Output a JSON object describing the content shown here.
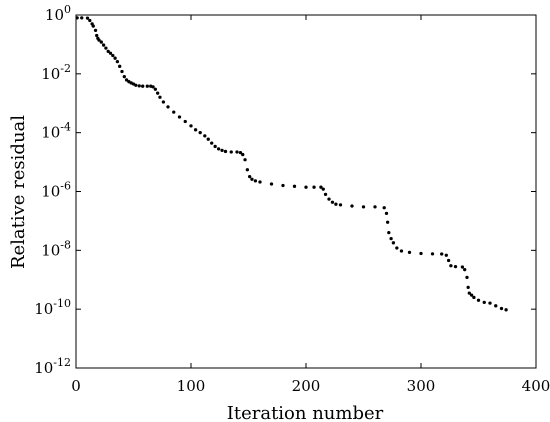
{
  "chart_data": {
    "type": "scatter",
    "title": "",
    "xlabel": "Iteration number",
    "ylabel": "Relative residual",
    "xlim": [
      0,
      400
    ],
    "ylim": [
      1e-12,
      1
    ],
    "yscale": "log",
    "grid": true,
    "xticks": [
      0,
      100,
      200,
      300,
      400
    ],
    "xtick_labels": [
      "0",
      "100",
      "200",
      "300",
      "400"
    ],
    "yticks": [
      1e-12,
      1e-10,
      1e-08,
      1e-06,
      0.0001,
      0.01,
      1
    ],
    "ytick_labels": [
      {
        "base": "10",
        "exp": "-12"
      },
      {
        "base": "10",
        "exp": "-10"
      },
      {
        "base": "10",
        "exp": "-8"
      },
      {
        "base": "10",
        "exp": "-6"
      },
      {
        "base": "10",
        "exp": "-4"
      },
      {
        "base": "10",
        "exp": "-2"
      },
      {
        "base": "10",
        "exp": "0"
      }
    ],
    "marker_color": "#000000",
    "series": [
      {
        "points": [
          [
            1,
            0.8
          ],
          [
            5,
            0.8
          ],
          [
            10,
            0.78
          ],
          [
            12,
            0.65
          ],
          [
            14,
            0.5
          ],
          [
            15,
            0.42
          ],
          [
            17,
            0.3
          ],
          [
            18,
            0.2
          ],
          [
            19,
            0.16
          ],
          [
            20,
            0.14
          ],
          [
            22,
            0.12
          ],
          [
            24,
            0.095
          ],
          [
            26,
            0.075
          ],
          [
            28,
            0.058
          ],
          [
            30,
            0.05
          ],
          [
            32,
            0.042
          ],
          [
            34,
            0.034
          ],
          [
            36,
            0.026
          ],
          [
            38,
            0.018
          ],
          [
            40,
            0.012
          ],
          [
            42,
            0.008
          ],
          [
            44,
            0.0062
          ],
          [
            46,
            0.0054
          ],
          [
            48,
            0.0049
          ],
          [
            50,
            0.0045
          ],
          [
            52,
            0.0041
          ],
          [
            55,
            0.0039
          ],
          [
            58,
            0.0038
          ],
          [
            62,
            0.0038
          ],
          [
            65,
            0.0038
          ],
          [
            67,
            0.0036
          ],
          [
            69,
            0.003
          ],
          [
            71,
            0.0022
          ],
          [
            73,
            0.0016
          ],
          [
            76,
            0.0011
          ],
          [
            80,
            0.00075
          ],
          [
            85,
            0.0005
          ],
          [
            90,
            0.00034
          ],
          [
            95,
            0.00024
          ],
          [
            100,
            0.00017
          ],
          [
            104,
            0.000125
          ],
          [
            108,
            0.0001
          ],
          [
            112,
            7.8e-05
          ],
          [
            115,
            6e-05
          ],
          [
            118,
            4.4e-05
          ],
          [
            121,
            3.4e-05
          ],
          [
            124,
            2.8e-05
          ],
          [
            127,
            2.5e-05
          ],
          [
            130,
            2.3e-05
          ],
          [
            135,
            2.2e-05
          ],
          [
            140,
            2.2e-05
          ],
          [
            143,
            2.1e-05
          ],
          [
            145,
            1.8e-05
          ],
          [
            147,
            1.2e-05
          ],
          [
            149,
            5.5e-06
          ],
          [
            151,
            3.2e-06
          ],
          [
            153,
            2.6e-06
          ],
          [
            156,
            2.3e-06
          ],
          [
            160,
            2.1e-06
          ],
          [
            170,
            1.8e-06
          ],
          [
            180,
            1.6e-06
          ],
          [
            190,
            1.5e-06
          ],
          [
            200,
            1.4e-06
          ],
          [
            207,
            1.4e-06
          ],
          [
            213,
            1.4e-06
          ],
          [
            215,
            1.2e-06
          ],
          [
            217,
            8e-07
          ],
          [
            220,
            5.5e-07
          ],
          [
            223,
            4.3e-07
          ],
          [
            226,
            3.7e-07
          ],
          [
            230,
            3.5e-07
          ],
          [
            240,
            3.2e-07
          ],
          [
            250,
            3e-07
          ],
          [
            260,
            3e-07
          ],
          [
            268,
            2.8e-07
          ],
          [
            270,
            1.8e-07
          ],
          [
            271,
            9e-08
          ],
          [
            272,
            4e-08
          ],
          [
            274,
            2.5e-08
          ],
          [
            276,
            1.8e-08
          ],
          [
            279,
            1.2e-08
          ],
          [
            283,
            9.5e-09
          ],
          [
            290,
            8.5e-09
          ],
          [
            300,
            7.8e-09
          ],
          [
            310,
            7.6e-09
          ],
          [
            318,
            7.5e-09
          ],
          [
            322,
            6.8e-09
          ],
          [
            324,
            4.5e-09
          ],
          [
            326,
            3e-09
          ],
          [
            330,
            2.8e-09
          ],
          [
            336,
            2.7e-09
          ],
          [
            338,
            2.2e-09
          ],
          [
            340,
            1.2e-09
          ],
          [
            341,
            5.5e-10
          ],
          [
            342,
            3.5e-10
          ],
          [
            344,
            3e-10
          ],
          [
            346,
            2.5e-10
          ],
          [
            350,
            2e-10
          ],
          [
            355,
            1.7e-10
          ],
          [
            360,
            1.6e-10
          ],
          [
            365,
            1.3e-10
          ],
          [
            370,
            1.05e-10
          ],
          [
            374,
            9.5e-11
          ]
        ]
      }
    ]
  }
}
